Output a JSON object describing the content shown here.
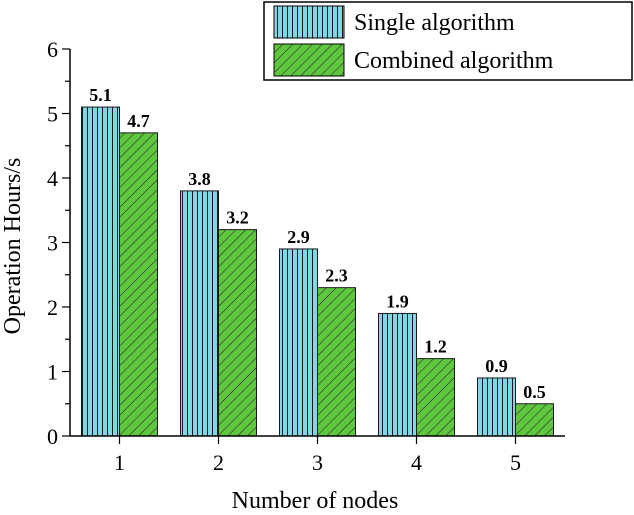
{
  "chart_data": {
    "type": "bar",
    "categories": [
      "1",
      "2",
      "3",
      "4",
      "5"
    ],
    "series": [
      {
        "name": "Single algorithm",
        "values": [
          5.1,
          3.8,
          2.9,
          1.9,
          0.9
        ],
        "data_labels": [
          "5.1",
          "3.8",
          "2.9",
          "1.9",
          "0.9"
        ],
        "color": "#7fd6e6",
        "pattern": "vertical-lines"
      },
      {
        "name": "Combined algorithm",
        "values": [
          4.7,
          3.2,
          2.3,
          1.2,
          0.5
        ],
        "data_labels": [
          "4.7",
          "3.2",
          "2.3",
          "1.2",
          "0.5"
        ],
        "color": "#5fc640",
        "pattern": "diagonal-lines"
      }
    ],
    "xlabel": "Number of nodes",
    "ylabel": "Operation Hours/s",
    "ylim": [
      0,
      6
    ],
    "yticks": [
      "0",
      "1",
      "2",
      "3",
      "4",
      "5",
      "6"
    ],
    "grid": false,
    "legend_position": "top-right"
  }
}
